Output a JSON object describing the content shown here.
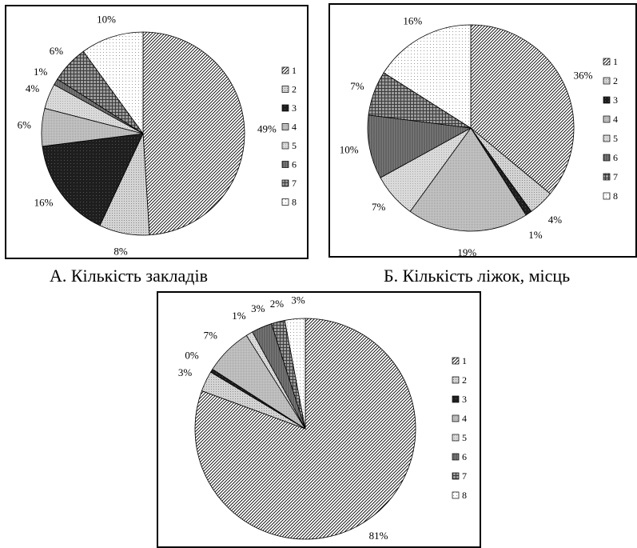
{
  "legend_labels": [
    "1",
    "2",
    "3",
    "4",
    "5",
    "6",
    "7",
    "8"
  ],
  "captions": {
    "a": "А. Кількість закладів",
    "b": "Б. Кількість ліжок, місць"
  },
  "chart_data": [
    {
      "type": "pie",
      "title": "А. Кількість закладів",
      "categories": [
        "1",
        "2",
        "3",
        "4",
        "5",
        "6",
        "7",
        "8"
      ],
      "values": [
        49,
        8,
        16,
        6,
        4,
        1,
        6,
        10
      ],
      "data_labels": [
        "49%",
        "8%",
        "16%",
        "6%",
        "4%",
        "1%",
        "6%",
        "10%"
      ],
      "legend_position": "right"
    },
    {
      "type": "pie",
      "title": "Б. Кількість ліжок, місць",
      "categories": [
        "1",
        "2",
        "3",
        "4",
        "5",
        "6",
        "7",
        "8"
      ],
      "values": [
        36,
        4,
        1,
        19,
        7,
        10,
        7,
        16
      ],
      "data_labels": [
        "36%",
        "4%",
        "1%",
        "19%",
        "7%",
        "10%",
        "7%",
        "16%"
      ],
      "legend_position": "right"
    },
    {
      "type": "pie",
      "title": "",
      "categories": [
        "1",
        "2",
        "3",
        "4",
        "5",
        "6",
        "7",
        "8"
      ],
      "values": [
        81,
        3,
        0.5,
        7,
        1,
        3,
        2,
        3
      ],
      "data_labels": [
        "81%",
        "3%",
        "0%",
        "7%",
        "1%",
        "3%",
        "2%",
        "3%"
      ],
      "legend_position": "right"
    }
  ]
}
